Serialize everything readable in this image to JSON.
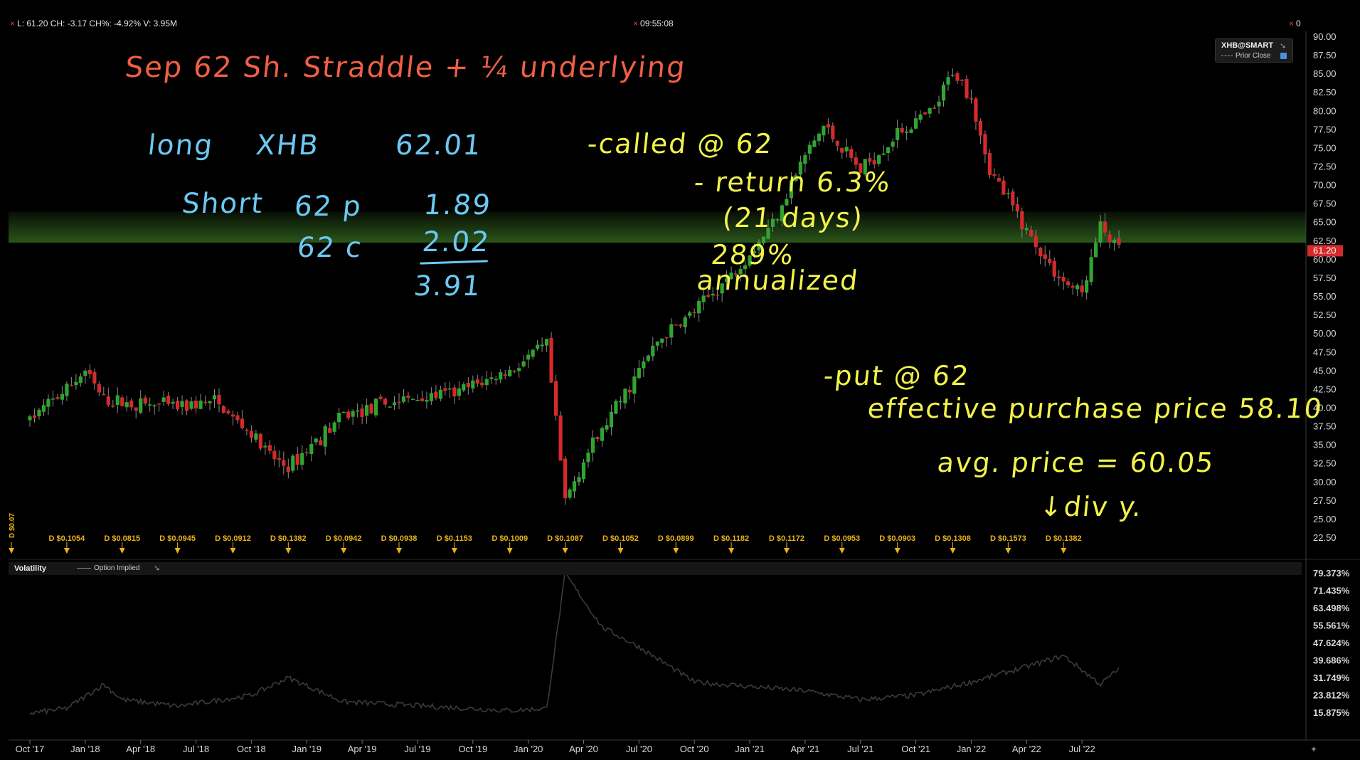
{
  "header": {
    "close_glyph": "×",
    "quote_line": "L: 61.20 CH: -3.17 CH%: -4.92% V: 3.95M",
    "clock": "09:55:08",
    "corner_value": "0"
  },
  "legend": {
    "symbol": "XHB@SMART",
    "prior_close": "Prior Close"
  },
  "volatility_panel": {
    "label": "Volatility",
    "series_label": "Option Implied"
  },
  "annotations": {
    "title": "Sep   62   Sh. Straddle  +  ¼  underlying",
    "long_label": "long",
    "long_sym": "XHB",
    "long_price": "62.01",
    "short_label": "Short",
    "short_put": "62 p",
    "short_put_price": "1.89",
    "short_call": "62 c",
    "short_call_price": "2.02",
    "total": "3.91",
    "called": "-called @ 62",
    "return": "- return   6.3%",
    "days": "(21 days)",
    "annualized_pct": "289%",
    "annualized": "annualized",
    "put": "-put  @  62",
    "effective": "effective  purchase  price    58.10",
    "avg": "avg.  price   =  60.05",
    "div": "↓div y."
  },
  "chart_data": [
    {
      "type": "candlestick",
      "symbol": "XHB@SMART",
      "last_price": 61.2,
      "last_price_label": "61.20",
      "ylim": [
        22.5,
        90.0
      ],
      "y_ticks": [
        "90.00",
        "87.50",
        "85.00",
        "82.50",
        "80.00",
        "77.50",
        "75.00",
        "72.50",
        "70.00",
        "67.50",
        "65.00",
        "62.50",
        "60.00",
        "57.50",
        "55.00",
        "52.50",
        "50.00",
        "47.50",
        "45.00",
        "42.50",
        "40.00",
        "37.50",
        "35.00",
        "32.50",
        "30.00",
        "27.50",
        "25.00",
        "22.50"
      ],
      "x_ticks": [
        "Oct '17",
        "Jan '18",
        "Apr '18",
        "Jul '18",
        "Oct '18",
        "Jan '19",
        "Apr '19",
        "Jul '19",
        "Oct '19",
        "Jan '20",
        "Apr '20",
        "Jul '20",
        "Oct '20",
        "Jan '21",
        "Apr '21",
        "Jul '21",
        "Oct '21",
        "Jan '22",
        "Apr '22",
        "Jul '22"
      ],
      "highlight_band": [
        62.3,
        66.5
      ],
      "close_path": [
        {
          "x": "Oct '17",
          "y": 38.5
        },
        {
          "x": "Nov '17",
          "y": 40.5
        },
        {
          "x": "Dec '17",
          "y": 42.5
        },
        {
          "x": "Jan '18",
          "y": 45.0
        },
        {
          "x": "Feb '18",
          "y": 41.0
        },
        {
          "x": "Apr '18",
          "y": 40.5
        },
        {
          "x": "Jun '18",
          "y": 40.2
        },
        {
          "x": "Aug '18",
          "y": 40.8
        },
        {
          "x": "Oct '18",
          "y": 36.5
        },
        {
          "x": "Nov '18",
          "y": 33.5
        },
        {
          "x": "Dec '18",
          "y": 32.0
        },
        {
          "x": "Jan '19",
          "y": 34.5
        },
        {
          "x": "Mar '19",
          "y": 39.0
        },
        {
          "x": "Jun '19",
          "y": 41.0
        },
        {
          "x": "Sep '19",
          "y": 42.0
        },
        {
          "x": "Dec '19",
          "y": 45.0
        },
        {
          "x": "Feb '20",
          "y": 48.5
        },
        {
          "x": "Mar '20",
          "y": 27.5
        },
        {
          "x": "Apr '20",
          "y": 33.0
        },
        {
          "x": "Jun '20",
          "y": 41.0
        },
        {
          "x": "Aug '20",
          "y": 49.0
        },
        {
          "x": "Oct '20",
          "y": 53.0
        },
        {
          "x": "Dec '20",
          "y": 58.0
        },
        {
          "x": "Feb '21",
          "y": 64.0
        },
        {
          "x": "Apr '21",
          "y": 74.0
        },
        {
          "x": "May '21",
          "y": 78.0
        },
        {
          "x": "Jul '21",
          "y": 72.0
        },
        {
          "x": "Sep '21",
          "y": 77.0
        },
        {
          "x": "Nov '21",
          "y": 80.0
        },
        {
          "x": "Dec '21",
          "y": 85.5
        },
        {
          "x": "Jan '22",
          "y": 82.0
        },
        {
          "x": "Feb '22",
          "y": 72.0
        },
        {
          "x": "Apr '22",
          "y": 64.0
        },
        {
          "x": "May '22",
          "y": 60.0
        },
        {
          "x": "Jun '22",
          "y": 57.0
        },
        {
          "x": "Jul '22",
          "y": 55.5
        },
        {
          "x": "Aug '22",
          "y": 64.5
        },
        {
          "x": "Sep '22",
          "y": 61.2
        }
      ],
      "dividends": [
        {
          "x": "Sep '17",
          "label": "D $0.07"
        },
        {
          "x": "Dec '17",
          "label": "D $0.1054"
        },
        {
          "x": "Mar '18",
          "label": "D $0.0815"
        },
        {
          "x": "Jun '18",
          "label": "D $0.0945"
        },
        {
          "x": "Sep '18",
          "label": "D $0.0912"
        },
        {
          "x": "Dec '18",
          "label": "D $0.1382"
        },
        {
          "x": "Mar '19",
          "label": "D $0.0942"
        },
        {
          "x": "Jun '19",
          "label": "D $0.0938"
        },
        {
          "x": "Sep '19",
          "label": "D $0.1153"
        },
        {
          "x": "Dec '19",
          "label": "D $0.1009"
        },
        {
          "x": "Mar '20",
          "label": "D $0.1087"
        },
        {
          "x": "Jun '20",
          "label": "D $0.1052"
        },
        {
          "x": "Sep '20",
          "label": "D $0.0899"
        },
        {
          "x": "Dec '20",
          "label": "D $0.1182"
        },
        {
          "x": "Mar '21",
          "label": "D $0.1172"
        },
        {
          "x": "Jun '21",
          "label": "D $0.0953"
        },
        {
          "x": "Sep '21",
          "label": "D $0.0903"
        },
        {
          "x": "Dec '21",
          "label": "D $0.1308"
        },
        {
          "x": "Mar '22",
          "label": "D $0.1573"
        },
        {
          "x": "Jun '22",
          "label": "D $0.1382"
        }
      ],
      "colors": {
        "up": "#2fa52f",
        "down": "#d42a2a",
        "band": "#2d5a1c",
        "divmark": "#e8b21a"
      }
    },
    {
      "type": "line",
      "name": "Option Implied",
      "ylim": [
        12.0,
        82.0
      ],
      "y_ticks": [
        "79.373%",
        "71.435%",
        "63.498%",
        "55.561%",
        "47.624%",
        "39.686%",
        "31.749%",
        "23.812%",
        "15.875%"
      ],
      "key_points": [
        {
          "x": "Oct '17",
          "y": 15.8
        },
        {
          "x": "Dec '17",
          "y": 18.0
        },
        {
          "x": "Feb '18",
          "y": 29.0
        },
        {
          "x": "Mar '18",
          "y": 22.0
        },
        {
          "x": "Jun '18",
          "y": 19.0
        },
        {
          "x": "Oct '18",
          "y": 24.0
        },
        {
          "x": "Dec '18",
          "y": 32.0
        },
        {
          "x": "Mar '19",
          "y": 21.0
        },
        {
          "x": "Dec '19",
          "y": 17.0
        },
        {
          "x": "Feb '20",
          "y": 18.0
        },
        {
          "x": "Mar '20",
          "y": 79.4
        },
        {
          "x": "May '20",
          "y": 55.0
        },
        {
          "x": "Jul '20",
          "y": 46.0
        },
        {
          "x": "Oct '20",
          "y": 30.0
        },
        {
          "x": "Jan '21",
          "y": 28.0
        },
        {
          "x": "Apr '21",
          "y": 26.0
        },
        {
          "x": "Jul '21",
          "y": 22.0
        },
        {
          "x": "Oct '21",
          "y": 24.0
        },
        {
          "x": "Jan '22",
          "y": 30.0
        },
        {
          "x": "Apr '22",
          "y": 37.0
        },
        {
          "x": "Jun '22",
          "y": 42.0
        },
        {
          "x": "Aug '22",
          "y": 29.0
        },
        {
          "x": "Sep '22",
          "y": 36.0
        }
      ],
      "color": "#3b3b3b"
    }
  ]
}
